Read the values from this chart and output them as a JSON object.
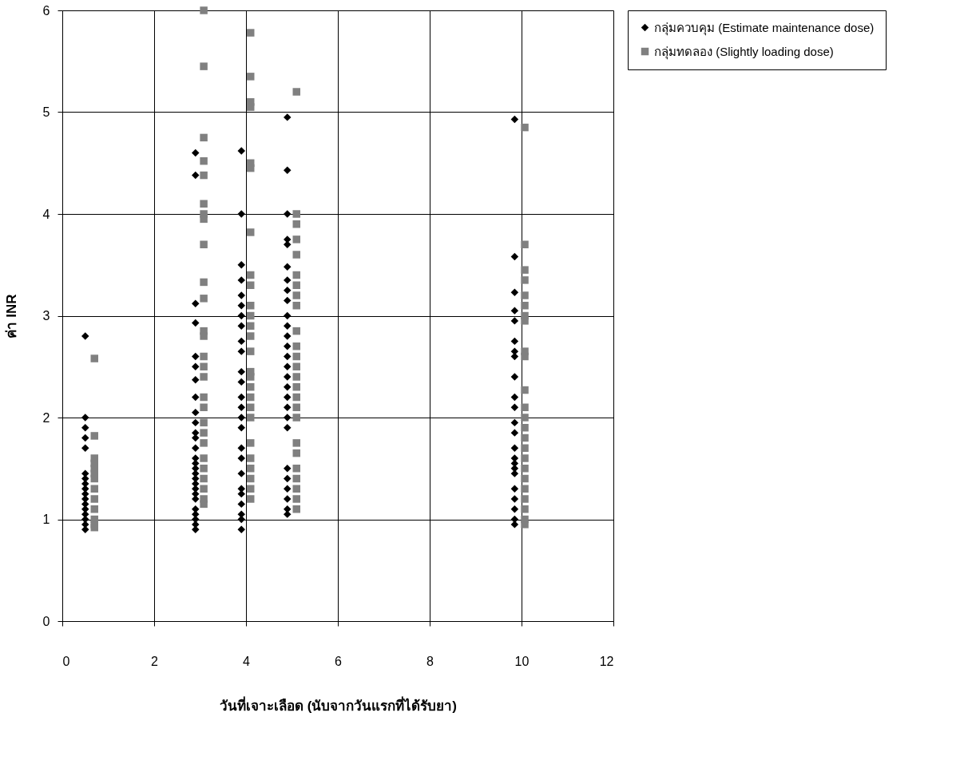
{
  "chart_data": {
    "type": "scatter",
    "xlabel": "วันที่เจาะเลือด (นับจากวันแรกที่ได้รับยา)",
    "ylabel": "ค่า INR",
    "xlim": [
      0,
      12
    ],
    "xticks": [
      0,
      2,
      4,
      6,
      8,
      10,
      12
    ],
    "ylim": [
      0,
      6
    ],
    "yticks": [
      0,
      1,
      2,
      3,
      4,
      5,
      6
    ],
    "grid": true,
    "legend": "right",
    "series": [
      {
        "name": "กลุ่มควบคุม (Estimate maintenance dose)",
        "color": "#000000",
        "marker": "diamond",
        "x": [
          0.5,
          0.5,
          0.5,
          0.5,
          0.5,
          0.5,
          0.5,
          0.5,
          0.5,
          0.5,
          0.5,
          0.5,
          0.5,
          0.5,
          0.5,
          0.5,
          0.5,
          2.9,
          2.9,
          2.9,
          2.9,
          2.9,
          2.9,
          2.9,
          2.9,
          2.9,
          2.9,
          2.9,
          2.9,
          2.9,
          2.9,
          2.9,
          2.9,
          2.9,
          2.9,
          2.9,
          2.9,
          2.9,
          2.9,
          2.9,
          2.9,
          2.9,
          2.9,
          2.9,
          3.9,
          3.9,
          3.9,
          3.9,
          3.9,
          3.9,
          3.9,
          3.9,
          3.9,
          3.9,
          3.9,
          3.9,
          3.9,
          3.9,
          3.9,
          3.9,
          3.9,
          3.9,
          3.9,
          3.9,
          3.9,
          3.9,
          3.9,
          3.9,
          3.9,
          4.9,
          4.9,
          4.9,
          4.9,
          4.9,
          4.9,
          4.9,
          4.9,
          4.9,
          4.9,
          4.9,
          4.9,
          4.9,
          4.9,
          4.9,
          4.9,
          4.9,
          4.9,
          4.9,
          4.9,
          4.9,
          4.9,
          4.9,
          4.9,
          4.9,
          4.9,
          4.9,
          9.85,
          9.85,
          9.85,
          9.85,
          9.85,
          9.85,
          9.85,
          9.85,
          9.85,
          9.85,
          9.85,
          9.85,
          9.85,
          9.85,
          9.85,
          9.85,
          9.85,
          9.85,
          9.85,
          9.85,
          9.85,
          9.85,
          9.85
        ],
        "values": [
          2.8,
          2.0,
          1.9,
          1.8,
          1.7,
          1.45,
          1.4,
          1.35,
          1.3,
          1.25,
          1.2,
          1.15,
          1.1,
          1.05,
          1.0,
          0.95,
          0.9,
          4.6,
          4.38,
          3.12,
          2.93,
          2.6,
          2.5,
          2.37,
          2.2,
          2.05,
          1.95,
          1.85,
          1.8,
          1.7,
          1.6,
          1.55,
          1.5,
          1.45,
          1.4,
          1.35,
          1.3,
          1.25,
          1.2,
          1.1,
          1.05,
          1.0,
          0.95,
          0.9,
          4.62,
          4.0,
          3.5,
          3.35,
          3.2,
          3.1,
          3.0,
          2.9,
          2.75,
          2.65,
          2.45,
          2.35,
          2.2,
          2.1,
          2.0,
          1.9,
          1.7,
          1.6,
          1.45,
          1.3,
          1.25,
          1.15,
          1.05,
          1.0,
          0.9,
          4.95,
          4.43,
          4.0,
          3.75,
          3.7,
          3.48,
          3.35,
          3.25,
          3.15,
          3.0,
          2.9,
          2.8,
          2.7,
          2.6,
          2.5,
          2.4,
          2.3,
          2.2,
          2.1,
          2.0,
          1.9,
          1.5,
          1.4,
          1.3,
          1.2,
          1.1,
          1.05,
          4.93,
          3.58,
          3.23,
          3.05,
          2.95,
          2.75,
          2.65,
          2.6,
          2.4,
          2.2,
          2.1,
          1.95,
          1.85,
          1.7,
          1.6,
          1.55,
          1.5,
          1.45,
          1.3,
          1.2,
          1.1,
          1.0,
          0.95
        ]
      },
      {
        "name": "กลุ่มทดลอง (Slightly loading dose)",
        "color": "#808080",
        "marker": "square",
        "x": [
          0.7,
          0.7,
          0.7,
          0.7,
          0.7,
          0.7,
          0.7,
          0.7,
          0.7,
          0.7,
          0.7,
          0.7,
          0.7,
          3.08,
          3.08,
          3.08,
          3.08,
          3.08,
          3.08,
          3.08,
          3.08,
          3.08,
          3.08,
          3.08,
          3.08,
          3.08,
          3.08,
          3.08,
          3.08,
          3.08,
          3.08,
          3.08,
          3.08,
          3.08,
          3.08,
          3.08,
          3.08,
          3.08,
          3.08,
          3.08,
          4.1,
          4.1,
          4.1,
          4.1,
          4.1,
          4.1,
          4.1,
          4.1,
          4.1,
          4.1,
          4.1,
          4.1,
          4.1,
          4.1,
          4.1,
          4.1,
          4.1,
          4.1,
          4.1,
          4.1,
          4.1,
          4.1,
          4.1,
          4.1,
          4.1,
          4.1,
          5.1,
          5.1,
          5.1,
          5.1,
          5.1,
          5.1,
          5.1,
          5.1,
          5.1,
          5.1,
          5.1,
          5.1,
          5.1,
          5.1,
          5.1,
          5.1,
          5.1,
          5.1,
          5.1,
          5.1,
          5.1,
          5.1,
          5.1,
          5.1,
          5.1,
          10.07,
          10.07,
          10.07,
          10.07,
          10.07,
          10.07,
          10.07,
          10.07,
          10.07,
          10.07,
          10.07,
          10.07,
          10.07,
          10.07,
          10.07,
          10.07,
          10.07,
          10.07,
          10.07,
          10.07,
          10.07,
          10.07,
          10.07,
          10.07
        ],
        "values": [
          2.58,
          1.82,
          1.6,
          1.55,
          1.5,
          1.45,
          1.4,
          1.3,
          1.2,
          1.1,
          1.0,
          0.95,
          0.92,
          6.0,
          5.45,
          4.75,
          4.52,
          4.38,
          4.1,
          4.0,
          3.95,
          3.7,
          3.33,
          3.17,
          2.85,
          2.8,
          2.6,
          2.5,
          2.4,
          2.2,
          2.1,
          1.95,
          1.85,
          1.75,
          1.6,
          1.5,
          1.4,
          1.3,
          1.2,
          1.15,
          5.78,
          5.35,
          5.1,
          5.05,
          4.5,
          4.45,
          3.82,
          3.4,
          3.3,
          3.1,
          3.0,
          2.9,
          2.8,
          2.65,
          2.45,
          2.4,
          2.3,
          2.2,
          2.1,
          2.0,
          1.75,
          1.6,
          1.5,
          1.4,
          1.3,
          1.2,
          5.2,
          4.0,
          3.9,
          3.75,
          3.6,
          3.4,
          3.3,
          3.2,
          3.1,
          2.85,
          2.7,
          2.6,
          2.5,
          2.4,
          2.3,
          2.2,
          2.1,
          2.0,
          1.75,
          1.65,
          1.5,
          1.4,
          1.3,
          1.2,
          1.1,
          4.85,
          3.7,
          3.45,
          3.35,
          3.2,
          3.1,
          3.0,
          2.95,
          2.65,
          2.6,
          2.27,
          2.1,
          2.0,
          1.9,
          1.8,
          1.7,
          1.6,
          1.5,
          1.4,
          1.3,
          1.2,
          1.1,
          1.0,
          0.95
        ]
      }
    ]
  }
}
